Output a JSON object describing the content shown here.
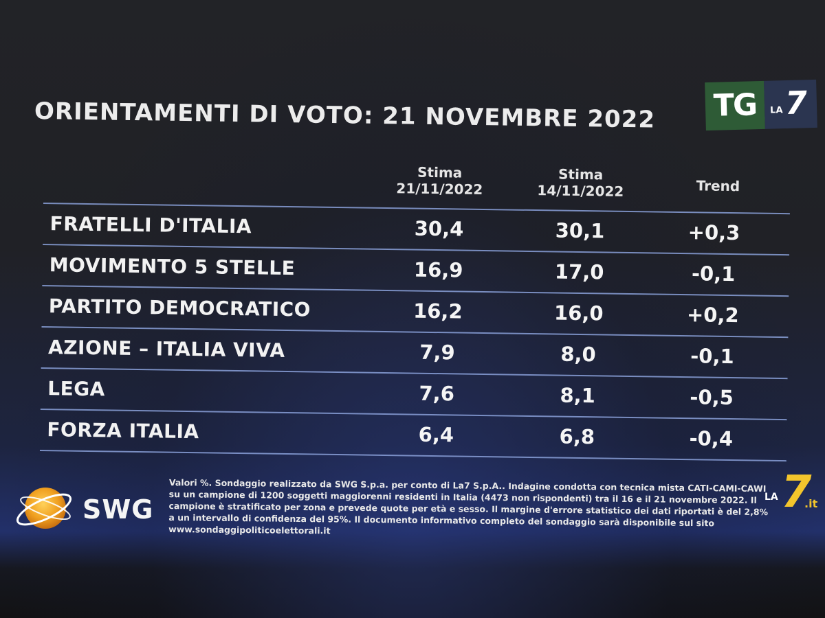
{
  "title": "ORIENTAMENTI DI VOTO: 21 NOVEMBRE 2022",
  "logo": {
    "tg": "TG",
    "la": "LA",
    "seven": "7"
  },
  "columns": {
    "c1_line1": "Stima",
    "c1_line2": "21/11/2022",
    "c2_line1": "Stima",
    "c2_line2": "14/11/2022",
    "trend": "Trend"
  },
  "rows": [
    {
      "party": "FRATELLI D'ITALIA",
      "current": "30,4",
      "previous": "30,1",
      "trend": "+0,3"
    },
    {
      "party": "MOVIMENTO 5 STELLE",
      "current": "16,9",
      "previous": "17,0",
      "trend": "-0,1"
    },
    {
      "party": "PARTITO DEMOCRATICO",
      "current": "16,2",
      "previous": "16,0",
      "trend": "+0,2"
    },
    {
      "party": "AZIONE – ITALIA VIVA",
      "current": "7,9",
      "previous": "8,0",
      "trend": "-0,1"
    },
    {
      "party": "LEGA",
      "current": "7,6",
      "previous": "8,1",
      "trend": "-0,5"
    },
    {
      "party": "FORZA ITALIA",
      "current": "6,4",
      "previous": "6,8",
      "trend": "-0,4"
    }
  ],
  "footer": {
    "brand": "SWG",
    "disclaimer": "Valori %. Sondaggio realizzato da SWG S.p.a. per conto di La7 S.p.A.. Indagine condotta con tecnica mista CATI-CAMI-CAWI su un campione di 1200 soggetti maggiorenni residenti in Italia (4473 non rispondenti) tra il 16 e il 21 novembre 2022. Il campione è stratificato per zona e prevede quote per età e sesso. Il margine d'errore statistico dei dati riportati è del 2,8% a un intervallo di confidenza del 95%. Il documento informativo completo del sondaggio sarà disponibile sul sito www.sondaggipoliticoelettorali.it",
    "la": "LA",
    "seven": "7",
    "it": ".it"
  },
  "colors": {
    "separator": "#8aa0d8",
    "swg_orange": "#f0a020",
    "la7_yellow": "#f3c52c",
    "tg_green": "#2e5b36"
  }
}
